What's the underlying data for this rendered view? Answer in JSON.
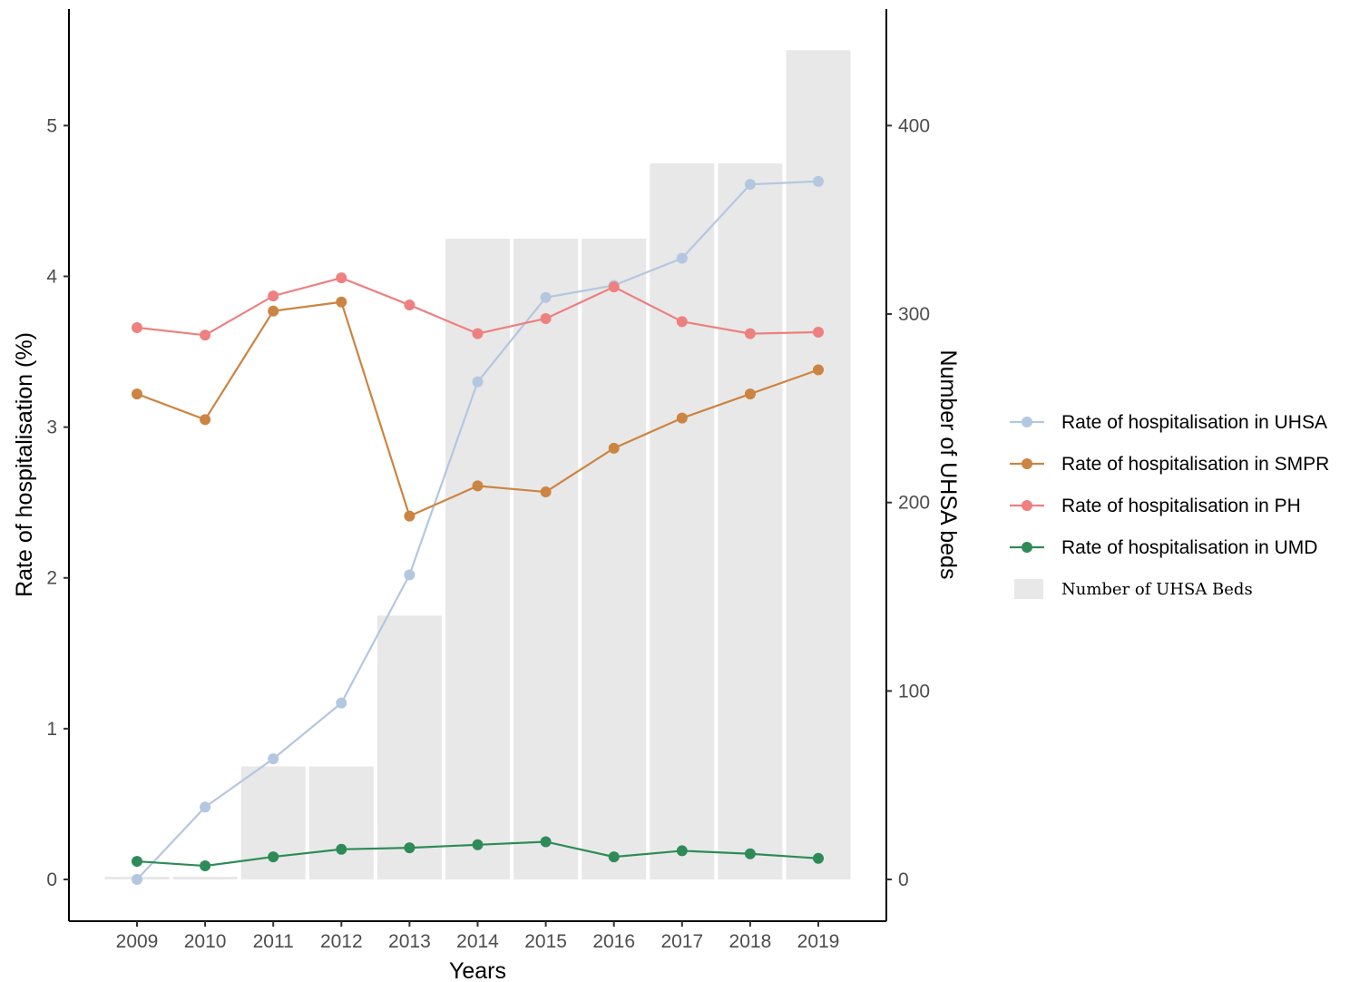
{
  "chart_data": {
    "type": "bar+line",
    "xlabel": "Years",
    "ylabel_left": "Rate of hospitalisation (%)",
    "ylabel_right": "Number of UHSA beds",
    "categories": [
      "2009",
      "2010",
      "2011",
      "2012",
      "2013",
      "2014",
      "2015",
      "2016",
      "2017",
      "2018",
      "2019"
    ],
    "y_left_ticks": [
      "0",
      "1",
      "2",
      "3",
      "4",
      "5"
    ],
    "y_right_ticks": [
      "0",
      "100",
      "200",
      "300",
      "400"
    ],
    "y_left_lim": [
      0,
      5.55
    ],
    "y_right_lim": [
      0,
      444
    ],
    "bars": {
      "name": "Number of UHSA Beds",
      "color": "#e8e8e8",
      "values": [
        0,
        0,
        60,
        60,
        140,
        340,
        340,
        340,
        380,
        380,
        440
      ]
    },
    "series": [
      {
        "name": "Rate of hospitalisation in UHSA",
        "color": "#b4c7e0",
        "values": [
          0.0,
          0.48,
          0.8,
          1.17,
          2.02,
          3.3,
          3.86,
          3.94,
          4.12,
          4.61,
          4.63
        ]
      },
      {
        "name": "Rate of hospitalisation in SMPR",
        "color": "#cc8442",
        "values": [
          3.22,
          3.05,
          3.77,
          3.83,
          2.41,
          2.61,
          2.57,
          2.86,
          3.06,
          3.22,
          3.38
        ]
      },
      {
        "name": "Rate of hospitalisation in PH",
        "color": "#ee8080",
        "values": [
          3.66,
          3.61,
          3.87,
          3.99,
          3.81,
          3.62,
          3.72,
          3.93,
          3.7,
          3.62,
          3.63
        ]
      },
      {
        "name": "Rate of hospitalisation in UMD",
        "color": "#2e8b57",
        "values": [
          0.12,
          0.09,
          0.15,
          0.2,
          0.21,
          0.23,
          0.25,
          0.15,
          0.19,
          0.17,
          0.14
        ]
      }
    ],
    "legend_position": "right",
    "grid": false
  }
}
